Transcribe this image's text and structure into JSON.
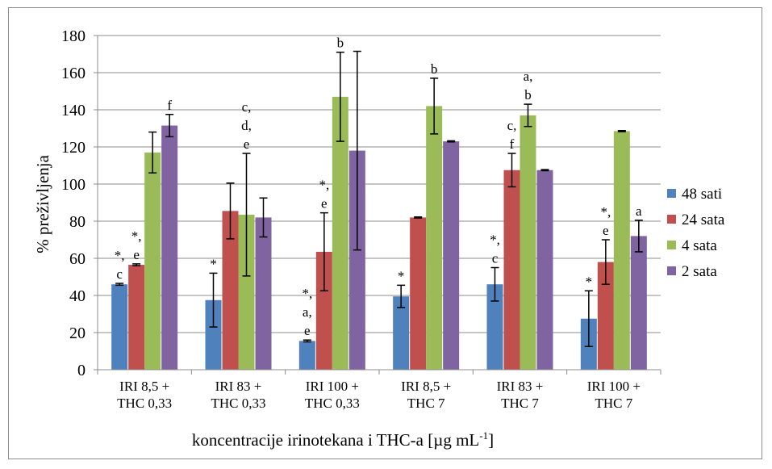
{
  "chart_data": {
    "type": "bar",
    "xlabel": "koncentracije irinotekana i THC-a [µg mL",
    "xlabel_sup": "-1",
    "xlabel_end": "]",
    "ylabel": "% preživljenja",
    "ylim": [
      0,
      180
    ],
    "yticks": [
      0,
      20,
      40,
      60,
      80,
      100,
      120,
      140,
      160,
      180
    ],
    "grid": true,
    "legend_position": "right",
    "categories": [
      [
        "IRI 8,5 +",
        "THC 0,33"
      ],
      [
        "IRI 83 +",
        "THC 0,33"
      ],
      [
        "IRI 100 +",
        "THC 0,33"
      ],
      [
        "IRI 8,5 +",
        "THC 7"
      ],
      [
        "IRI 83 +",
        "THC 7"
      ],
      [
        "IRI 100 +",
        "THC 7"
      ]
    ],
    "series": [
      {
        "name": "48 sati",
        "color": "#4f81bd",
        "values": [
          46,
          37.5,
          15.5,
          39.5,
          46,
          27.5
        ],
        "errors": [
          0.5,
          14.5,
          0.5,
          6,
          9,
          15
        ],
        "annotations": [
          [
            "*,",
            "c"
          ],
          [
            "*"
          ],
          [
            "*,",
            "a,",
            "e"
          ],
          [
            "*"
          ],
          [
            "*,",
            "c"
          ],
          [
            "*"
          ]
        ]
      },
      {
        "name": "24 sata",
        "color": "#c0504d",
        "values": [
          56.5,
          85.5,
          63.5,
          82,
          107.5,
          58
        ],
        "errors": [
          0.5,
          15,
          21,
          0.3,
          9,
          12
        ],
        "annotations": [
          [
            "*,",
            "e"
          ],
          [],
          [
            "*,",
            "e"
          ],
          [],
          [
            "c,",
            "f"
          ],
          [
            "*,",
            "e"
          ]
        ]
      },
      {
        "name": "4 sata",
        "color": "#9bbb59",
        "values": [
          117,
          83.5,
          147,
          142,
          137,
          128.5
        ],
        "errors": [
          11,
          33,
          24,
          15,
          6,
          0.3
        ],
        "annotations": [
          [],
          [
            "c,",
            "d,",
            "e"
          ],
          [
            "b"
          ],
          [
            "b"
          ],
          [
            "a,",
            "b"
          ],
          []
        ]
      },
      {
        "name": "2 sata",
        "color": "#8064a2",
        "values": [
          131.5,
          82,
          118,
          123,
          107.5,
          72
        ],
        "errors": [
          6,
          10.5,
          53.5,
          0.3,
          0.3,
          8.5
        ],
        "annotations": [
          [
            "f"
          ],
          [],
          [],
          [],
          [],
          [
            "a"
          ]
        ]
      }
    ]
  }
}
